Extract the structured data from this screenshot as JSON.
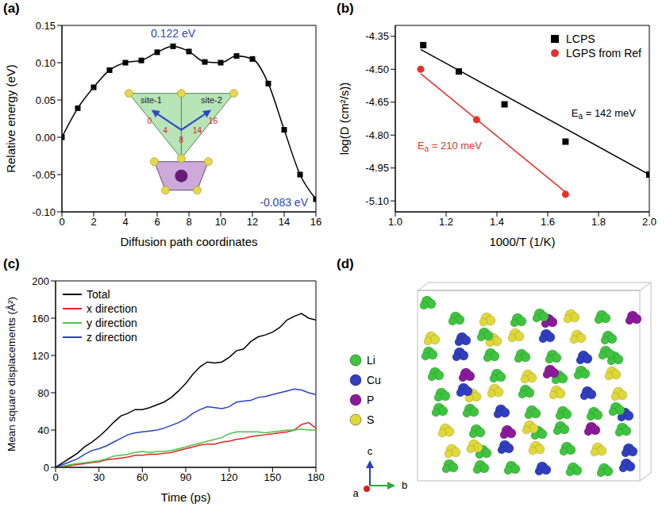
{
  "chart_data": [
    {
      "label": "(a)",
      "type": "line",
      "x_label": "Diffusion path coordinates",
      "y_label": "Relative energy (eV)",
      "x": [
        0,
        1,
        2,
        3,
        4,
        5,
        6,
        7,
        8,
        9,
        10,
        11,
        12,
        13,
        14,
        15,
        16
      ],
      "values": [
        0.0,
        0.039,
        0.067,
        0.09,
        0.1,
        0.103,
        0.114,
        0.122,
        0.115,
        0.101,
        0.1,
        0.109,
        0.105,
        0.072,
        0.01,
        -0.05,
        -0.083
      ],
      "color": "#000000",
      "marker": "square",
      "line_style": "solid",
      "xlim": [
        0,
        16
      ],
      "xticks": [
        0,
        2,
        4,
        6,
        8,
        10,
        12,
        14,
        16
      ],
      "ylim": [
        -0.1,
        0.15
      ],
      "yticks": [
        {
          "value": -0.1,
          "label": "-0.10"
        },
        -0.05,
        {
          "value": 0,
          "label": "0.00"
        },
        0.05,
        {
          "value": 0.1,
          "label": "0.10"
        },
        0.15
      ],
      "annotations": [
        {
          "text": "0.122 eV",
          "x": 7,
          "y": 0.122,
          "color": "#2f45c8"
        },
        {
          "text": "-0.083 eV",
          "x": 16,
          "y": -0.083,
          "color": "#2f45c8"
        }
      ],
      "inset": {
        "sites": [
          "site-1",
          "site-2"
        ],
        "path_coordinates": [
          0,
          4,
          8,
          14,
          16
        ]
      },
      "grid": false
    },
    {
      "label": "(b)",
      "type": "scatter",
      "x_label": "1000/T (1/K)",
      "y_label": "log(D (cm²/s))",
      "xlim": [
        1,
        2
      ],
      "xticks": [
        {
          "value": 1,
          "label": "1.0"
        },
        1.2,
        1.4,
        1.6,
        1.8,
        {
          "value": 2,
          "label": "2.0"
        }
      ],
      "ylim": [
        -5.15,
        -4.3
      ],
      "yticks": [
        {
          "value": -5.1,
          "label": "-5.10"
        },
        -4.95,
        {
          "value": -4.8,
          "label": "-4.80"
        },
        -4.65,
        {
          "value": -4.5,
          "label": "-4.50"
        },
        -4.35
      ],
      "legend": "upper right",
      "grid": false,
      "series": [
        {
          "name": "LCPS",
          "color": "#000000",
          "marker": "square",
          "x": [
            1.11,
            1.25,
            1.43,
            1.67,
            2.0
          ],
          "values": [
            -4.39,
            -4.51,
            -4.66,
            -4.83,
            -4.98
          ],
          "fit": {
            "x": [
              1.1,
              2.0
            ],
            "values": [
              -4.41,
              -4.98
            ],
            "label": "Ea = 142 meV"
          }
        },
        {
          "name": "LGPS from Ref",
          "color": "#e8312a",
          "marker": "circle",
          "x": [
            1.1,
            1.32,
            1.67
          ],
          "values": [
            -4.5,
            -4.73,
            -5.07
          ],
          "fit": {
            "x": [
              1.1,
              1.67
            ],
            "values": [
              -4.52,
              -5.06
            ],
            "label": "Ea = 210 meV"
          }
        }
      ]
    },
    {
      "label": "(c)",
      "type": "line",
      "x_label": "Time (ps)",
      "y_label": "Mean square displacements (Å²)",
      "xlim": [
        0,
        180
      ],
      "xticks": [
        0,
        30,
        60,
        90,
        120,
        150,
        180
      ],
      "ylim": [
        0,
        200
      ],
      "yticks": [
        0,
        40,
        80,
        120,
        160,
        200
      ],
      "legend": "upper left",
      "grid": false,
      "x": [
        0,
        5,
        10,
        15,
        20,
        25,
        30,
        35,
        40,
        45,
        50,
        55,
        60,
        65,
        70,
        75,
        80,
        85,
        90,
        95,
        100,
        105,
        110,
        115,
        120,
        125,
        130,
        135,
        140,
        145,
        150,
        155,
        160,
        165,
        170,
        175,
        180
      ],
      "series": [
        {
          "name": "Total",
          "color": "#000000",
          "values": [
            0,
            5,
            10,
            15,
            22,
            27,
            33,
            40,
            48,
            55,
            58,
            62,
            62,
            64,
            67,
            70,
            75,
            82,
            90,
            100,
            108,
            113,
            112,
            113,
            118,
            125,
            127,
            135,
            140,
            142,
            145,
            150,
            158,
            162,
            165,
            160,
            158
          ]
        },
        {
          "name": "x direction",
          "color": "#e8231f",
          "values": [
            0,
            1,
            2,
            3,
            4,
            5,
            6,
            8,
            9,
            10,
            11,
            13,
            13,
            14,
            14,
            15,
            16,
            18,
            20,
            22,
            24,
            25,
            25,
            27,
            28,
            30,
            31,
            33,
            34,
            35,
            36,
            37,
            38,
            40,
            46,
            48,
            42
          ]
        },
        {
          "name": "y direction",
          "color": "#4cc244",
          "values": [
            0,
            1,
            3,
            4,
            5,
            6,
            7,
            9,
            12,
            13,
            14,
            16,
            17,
            16,
            17,
            17,
            18,
            20,
            22,
            24,
            26,
            28,
            30,
            32,
            36,
            38,
            38,
            38,
            38,
            37,
            38,
            39,
            40,
            40,
            41,
            40,
            40
          ]
        },
        {
          "name": "z direction",
          "color": "#2a40c8",
          "values": [
            0,
            3,
            6,
            9,
            14,
            18,
            20,
            23,
            27,
            31,
            35,
            37,
            38,
            39,
            40,
            42,
            45,
            48,
            52,
            58,
            62,
            65,
            64,
            63,
            65,
            70,
            71,
            72,
            75,
            76,
            78,
            80,
            82,
            84,
            83,
            80,
            78
          ]
        }
      ]
    }
  ],
  "structure": {
    "label": "(d)",
    "legend": [
      {
        "name": "Li",
        "color": "#3ec43e"
      },
      {
        "name": "Cu",
        "color": "#2f3fc0"
      },
      {
        "name": "P",
        "color": "#8a1a9a"
      },
      {
        "name": "S",
        "color": "#e0d838"
      }
    ],
    "axes": [
      "a",
      "b",
      "c"
    ]
  }
}
